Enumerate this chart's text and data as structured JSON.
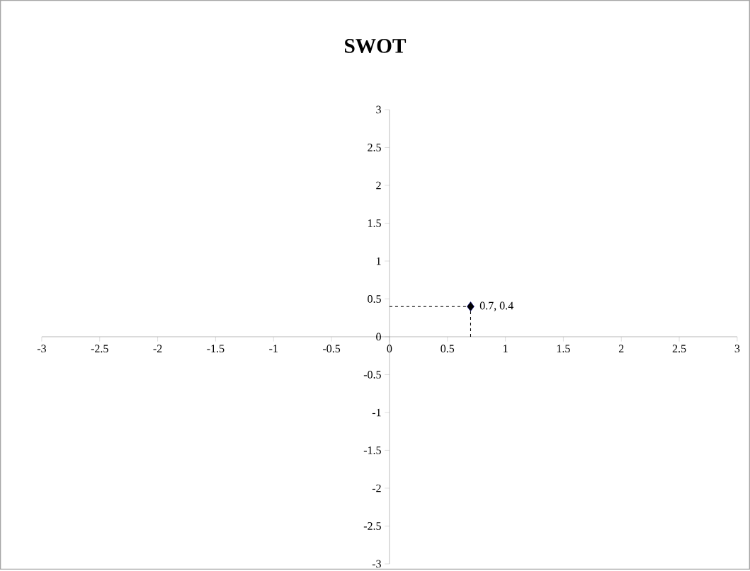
{
  "chart_data": {
    "type": "scatter",
    "title": "SWOT",
    "x": [
      0.7
    ],
    "values": [
      0.4
    ],
    "color": "#000000",
    "marker": "diamond",
    "value_labels": [
      "0.7, 0.4"
    ],
    "errors": [
      [
        0,
        0.4
      ]
    ],
    "xerrors": [
      [
        0,
        0.7
      ]
    ],
    "xlim": [
      -3,
      3
    ],
    "ylim": [
      -3,
      3
    ],
    "xticks": [
      -3,
      -2.5,
      -2,
      -1.5,
      -1,
      -0.5,
      0,
      0.5,
      1,
      1.5,
      2,
      2.5,
      3
    ],
    "yticks": [
      -3,
      -2.5,
      -2,
      -1.5,
      -1,
      -0.5,
      0,
      0.5,
      1,
      1.5,
      2,
      2.5,
      3
    ],
    "grid": false
  }
}
